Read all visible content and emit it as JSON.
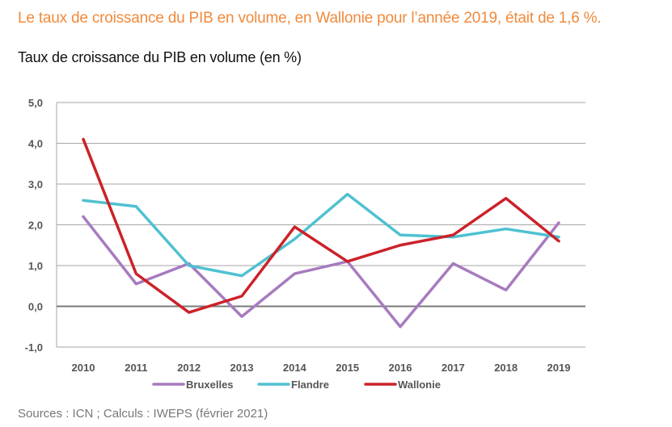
{
  "headline": "Le taux de croissance du PIB en volume, en Wallonie pour l’année 2019, était de 1,6 %.",
  "source": "Sources : ICN ; Calculs : IWEPS (février 2021)",
  "colors": {
    "headline": "#f08a3c",
    "bruxelles": "#a77bbf",
    "flandre": "#4fc1d1",
    "wallonie": "#cc2229",
    "grid": "#a6a6a6",
    "zero_line": "#7a7a7a"
  },
  "chart_data": {
    "type": "line",
    "title": "Taux de croissance du PIB en volume (en %)",
    "xlabel": "",
    "ylabel": "",
    "x": [
      "2010",
      "2011",
      "2012",
      "2013",
      "2014",
      "2015",
      "2016",
      "2017",
      "2018",
      "2019"
    ],
    "ylim": [
      -1,
      5
    ],
    "yticks": [
      "5,0",
      "4,0",
      "3,0",
      "2,0",
      "1,0",
      "0,0",
      "-1,0"
    ],
    "ytick_values": [
      5,
      4,
      3,
      2,
      1,
      0,
      -1
    ],
    "grid": true,
    "legend_position": "bottom",
    "series": [
      {
        "name": "Bruxelles",
        "color": "#a77bbf",
        "values": [
          2.2,
          0.55,
          1.05,
          -0.25,
          0.8,
          1.1,
          -0.5,
          1.05,
          0.4,
          2.05
        ]
      },
      {
        "name": "Flandre",
        "color": "#4fc1d1",
        "values": [
          2.6,
          2.45,
          1.0,
          0.75,
          1.65,
          2.75,
          1.75,
          1.7,
          1.9,
          1.7
        ]
      },
      {
        "name": "Wallonie",
        "color": "#cc2229",
        "values": [
          4.1,
          0.8,
          -0.15,
          0.25,
          1.95,
          1.1,
          1.5,
          1.75,
          2.65,
          1.6
        ]
      }
    ]
  }
}
